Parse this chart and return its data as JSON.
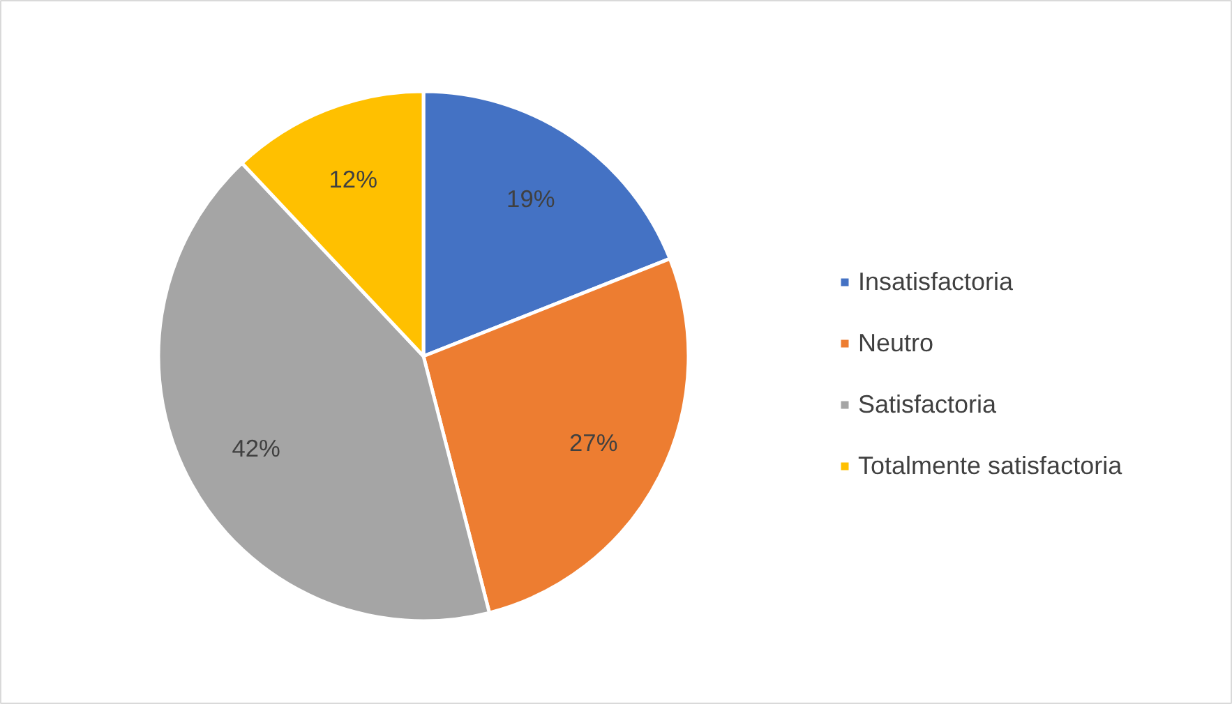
{
  "chart_data": {
    "type": "pie",
    "categories": [
      "Insatisfactoria",
      "Neutro",
      "Satisfactoria",
      "Totalmente satisfactoria"
    ],
    "values": [
      19,
      27,
      42,
      12
    ],
    "colors": [
      "#4472c4",
      "#ed7d31",
      "#a5a5a5",
      "#ffc000"
    ],
    "value_labels": [
      "19%",
      "27%",
      "42%",
      "12%"
    ],
    "legend": "right"
  }
}
